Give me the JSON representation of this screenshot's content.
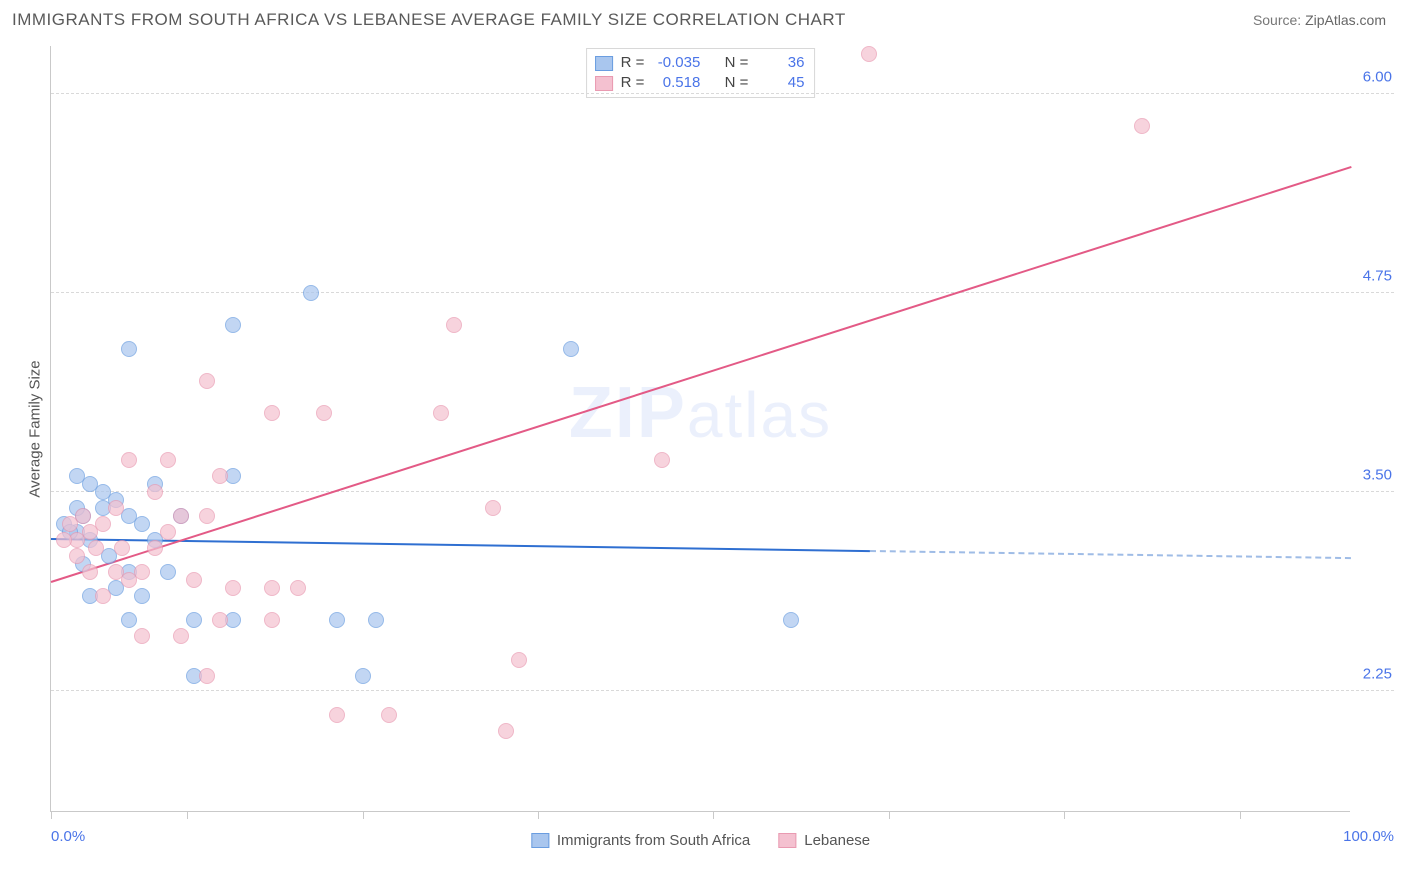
{
  "header": {
    "title": "IMMIGRANTS FROM SOUTH AFRICA VS LEBANESE AVERAGE FAMILY SIZE CORRELATION CHART",
    "source_prefix": "Source: ",
    "source_name": "ZipAtlas.com"
  },
  "chart": {
    "type": "scatter",
    "background_color": "#ffffff",
    "grid_color": "#d9d9d9",
    "axis_color": "#c9c9c9",
    "watermark_prefix": "ZIP",
    "watermark_suffix": "atlas",
    "ylabel": "Average Family Size",
    "ylabel_fontsize": 15,
    "tick_label_color": "#4a74e8",
    "ylim": [
      1.5,
      6.3
    ],
    "yticks": [
      2.25,
      3.5,
      4.75,
      6.0
    ],
    "ytick_labels": [
      "2.25",
      "3.50",
      "4.75",
      "6.00"
    ],
    "xlim": [
      0,
      100
    ],
    "xaxis_min_label": "0.0%",
    "xaxis_max_label": "100.0%",
    "xticks": [
      0,
      10.5,
      24,
      37.5,
      51,
      64.5,
      78,
      91.5
    ],
    "marker_radius": 8,
    "marker_fill_opacity": 0.25,
    "series": [
      {
        "id": "sa",
        "label": "Immigrants from South Africa",
        "color_stroke": "#6a9de0",
        "color_fill": "#a9c6ee",
        "r": "-0.035",
        "n": "36",
        "points": [
          [
            20,
            4.75
          ],
          [
            14,
            4.55
          ],
          [
            6,
            4.4
          ],
          [
            40,
            4.4
          ],
          [
            2,
            3.6
          ],
          [
            3,
            3.55
          ],
          [
            4,
            3.5
          ],
          [
            5,
            3.45
          ],
          [
            2.5,
            3.35
          ],
          [
            6,
            3.35
          ],
          [
            7,
            3.3
          ],
          [
            8,
            3.2
          ],
          [
            3,
            3.2
          ],
          [
            4.5,
            3.1
          ],
          [
            10,
            3.35
          ],
          [
            14,
            3.6
          ],
          [
            1,
            3.3
          ],
          [
            2,
            3.25
          ],
          [
            6,
            3.0
          ],
          [
            9,
            3.0
          ],
          [
            5,
            2.9
          ],
          [
            11,
            2.7
          ],
          [
            6,
            2.7
          ],
          [
            14,
            2.7
          ],
          [
            25,
            2.7
          ],
          [
            22,
            2.7
          ],
          [
            57,
            2.7
          ],
          [
            3,
            2.85
          ],
          [
            7,
            2.85
          ],
          [
            11,
            2.35
          ],
          [
            24,
            2.35
          ],
          [
            2,
            3.4
          ],
          [
            1.5,
            3.25
          ],
          [
            2.5,
            3.05
          ],
          [
            4,
            3.4
          ],
          [
            8,
            3.55
          ]
        ],
        "trend": {
          "x1": 0,
          "y1": 3.22,
          "x2_solid": 63,
          "x2": 100,
          "y2": 3.1,
          "color": "#2f6fd1",
          "dash_color": "#9fbce6"
        }
      },
      {
        "id": "leb",
        "label": "Lebanese",
        "color_stroke": "#e99ab1",
        "color_fill": "#f4c1d0",
        "r": "0.518",
        "n": "45",
        "points": [
          [
            63,
            6.25
          ],
          [
            84,
            5.8
          ],
          [
            31,
            4.55
          ],
          [
            30,
            4.0
          ],
          [
            17,
            4.0
          ],
          [
            21,
            4.0
          ],
          [
            12,
            4.2
          ],
          [
            13,
            3.6
          ],
          [
            9,
            3.7
          ],
          [
            6,
            3.7
          ],
          [
            8,
            3.5
          ],
          [
            10,
            3.35
          ],
          [
            12,
            3.35
          ],
          [
            5,
            3.4
          ],
          [
            4,
            3.3
          ],
          [
            3,
            3.25
          ],
          [
            2,
            3.2
          ],
          [
            1,
            3.2
          ],
          [
            2,
            3.1
          ],
          [
            3,
            3.0
          ],
          [
            5,
            3.0
          ],
          [
            7,
            3.0
          ],
          [
            11,
            2.95
          ],
          [
            14,
            2.9
          ],
          [
            17,
            2.9
          ],
          [
            19,
            2.9
          ],
          [
            17,
            2.7
          ],
          [
            13,
            2.7
          ],
          [
            10,
            2.6
          ],
          [
            7,
            2.6
          ],
          [
            22,
            2.1
          ],
          [
            26,
            2.1
          ],
          [
            35,
            2.0
          ],
          [
            36,
            2.45
          ],
          [
            47,
            3.7
          ],
          [
            34,
            3.4
          ],
          [
            12,
            2.35
          ],
          [
            4,
            2.85
          ],
          [
            6,
            2.95
          ],
          [
            8,
            3.15
          ],
          [
            9,
            3.25
          ],
          [
            1.5,
            3.3
          ],
          [
            2.5,
            3.35
          ],
          [
            3.5,
            3.15
          ],
          [
            5.5,
            3.15
          ]
        ],
        "trend": {
          "x1": 0,
          "y1": 2.95,
          "x2_solid": 100,
          "x2": 100,
          "y2": 5.55,
          "color": "#e35a86",
          "dash_color": "#e35a86"
        }
      }
    ],
    "legend_inset": {
      "r_label": "R =",
      "n_label": "N ="
    }
  }
}
